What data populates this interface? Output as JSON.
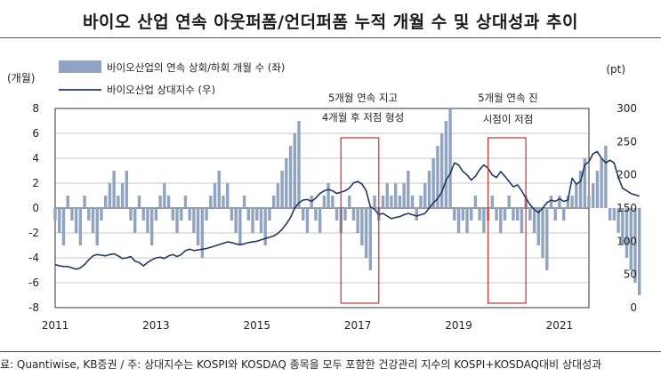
{
  "title": "바이오 산업 연속 아웃퍼폼/언더퍼폼 누적 개월 수 및 상대성과 추이",
  "source_note": "료: Quantiwise, KB증권  /  주: 상대지수는 KOSPI와 KOSDAQ 종목을 모두 포함한 건강관리 지수의 KOSPI+KOSDAQ대비 상대성과",
  "colors": {
    "bar": "#8fa3c4",
    "line": "#1f3864",
    "box": "#d0312d",
    "grid": "#b5b5b5"
  },
  "chart_data": {
    "type": "bar+line",
    "left_axis_unit": "(개월)",
    "right_axis_unit": "(pt)",
    "ylim_left": [
      -8,
      8
    ],
    "ylim_right": [
      0,
      300
    ],
    "y_ticks_left": [
      "8",
      "6",
      "4",
      "2",
      "0",
      "-2",
      "-4",
      "-6",
      "-8"
    ],
    "y_ticks_right": [
      "300",
      "250",
      "200",
      "150",
      "100",
      "50",
      "0"
    ],
    "x_ticks": [
      "2011",
      "2013",
      "2015",
      "2017",
      "2019",
      "2021"
    ],
    "x_range": [
      "2011-01",
      "2021-08"
    ],
    "grid": true,
    "legend_position": "top-left",
    "series": [
      {
        "name": "바이오산업의 연속 상회/하회 개월 수 (좌)",
        "type": "bar",
        "start": "2011-01",
        "values": [
          -1,
          -2,
          -3,
          1,
          -1,
          -2,
          -3,
          1,
          -1,
          -2,
          -3,
          -1,
          1,
          2,
          3,
          1,
          2,
          3,
          -1,
          -2,
          1,
          -1,
          -2,
          -3,
          -1,
          1,
          2,
          1,
          -1,
          -2,
          -1,
          1,
          -1,
          -2,
          -3,
          -4,
          -1,
          1,
          2,
          3,
          1,
          2,
          -1,
          -2,
          -3,
          1,
          -1,
          -2,
          -1,
          -2,
          -3,
          -1,
          1,
          2,
          3,
          4,
          5,
          6,
          7,
          -1,
          -2,
          1,
          -1,
          -2,
          1,
          2,
          1,
          -1,
          -2,
          -1,
          1,
          -1,
          -2,
          -3,
          -4,
          -5,
          1,
          -1,
          1,
          2,
          1,
          2,
          1,
          2,
          3,
          1,
          -1,
          1,
          2,
          3,
          4,
          5,
          6,
          7,
          8,
          -1,
          -2,
          -1,
          -2,
          -1,
          1,
          -1,
          -2,
          -1,
          1,
          -1,
          -2,
          -1,
          1,
          -1,
          -1,
          -2,
          1,
          -1,
          -2,
          -3,
          -4,
          -5,
          1,
          -1,
          1,
          -1,
          1,
          1,
          2,
          3,
          4,
          1,
          2,
          3,
          4,
          5,
          -1,
          -1,
          -2,
          -3,
          -4,
          -5,
          -6,
          -7
        ]
      },
      {
        "name": "바이오산업 상대지수 (우)",
        "type": "line",
        "start": "2011-01",
        "values": [
          65,
          63,
          62,
          62,
          60,
          58,
          60,
          65,
          72,
          78,
          80,
          79,
          78,
          80,
          81,
          78,
          74,
          75,
          77,
          70,
          68,
          63,
          68,
          72,
          75,
          76,
          74,
          78,
          80,
          77,
          80,
          86,
          88,
          86,
          87,
          88,
          89,
          91,
          93,
          95,
          97,
          99,
          98,
          96,
          95,
          96,
          98,
          99,
          100,
          102,
          104,
          106,
          108,
          112,
          118,
          126,
          136,
          150,
          158,
          162,
          163,
          160,
          165,
          172,
          176,
          178,
          176,
          172,
          174,
          176,
          180,
          188,
          190,
          186,
          176,
          152,
          148,
          140,
          142,
          138,
          134,
          136,
          137,
          140,
          142,
          140,
          138,
          140,
          142,
          150,
          158,
          164,
          174,
          192,
          202,
          218,
          215,
          205,
          200,
          192,
          198,
          208,
          215,
          210,
          200,
          196,
          205,
          198,
          190,
          182,
          185,
          176,
          165,
          155,
          148,
          143,
          150,
          158,
          162,
          160,
          164,
          160,
          162,
          195,
          186,
          190,
          215,
          220,
          232,
          235,
          225,
          218,
          222,
          218,
          196,
          180,
          176,
          172,
          170,
          168
        ]
      }
    ],
    "annotations": [
      {
        "lines": [
          "5개월 연속 지고",
          "4개월 후 저점 형성"
        ]
      },
      {
        "lines": [
          "5개월 연속 진",
          "시점이 저점"
        ]
      }
    ]
  }
}
